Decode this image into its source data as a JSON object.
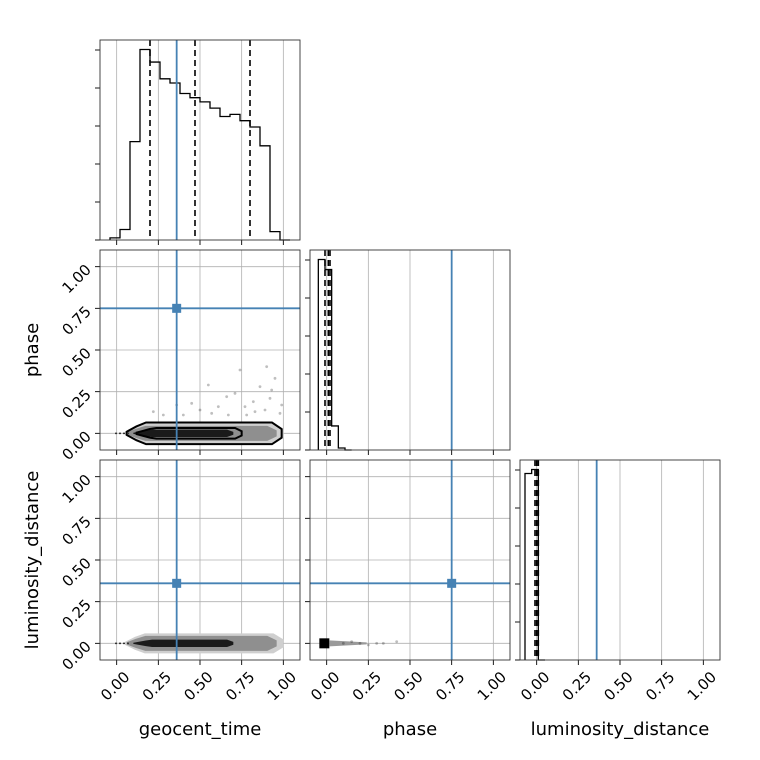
{
  "chart_data": {
    "type": "corner",
    "parameters": [
      "geocent_time",
      "phase",
      "luminosity_distance"
    ],
    "tick_labels": [
      "0.00",
      "0.25",
      "0.50",
      "0.75",
      "1.00"
    ],
    "truths": [
      0.36,
      0.75,
      0.36
    ],
    "axis_limits": {
      "geocent_time": [
        -0.1,
        1.1
      ],
      "phase": [
        -0.1,
        1.1
      ],
      "luminosity_distance": [
        -0.1,
        1.1
      ]
    },
    "grid": true,
    "histograms": [
      {
        "name": "geocent_time",
        "bin_edges": [
          -0.04,
          0.02,
          0.08,
          0.14,
          0.2,
          0.26,
          0.32,
          0.38,
          0.44,
          0.5,
          0.56,
          0.62,
          0.68,
          0.74,
          0.8,
          0.86,
          0.92,
          0.98,
          1.04
        ],
        "counts": [
          1,
          5,
          47,
          91,
          85,
          77,
          75,
          70,
          68,
          66,
          63,
          59,
          60,
          57,
          54,
          45,
          4,
          0
        ],
        "quantiles": [
          0.2,
          0.47,
          0.8
        ]
      },
      {
        "name": "phase",
        "bin_edges": [
          -0.05,
          -0.01,
          0.03,
          0.07,
          0.11,
          0.15
        ],
        "counts": [
          95,
          90,
          12,
          1,
          0
        ],
        "quantiles": [
          -0.01,
          0.01,
          0.02
        ]
      },
      {
        "name": "luminosity_distance",
        "bin_edges": [
          -0.07,
          -0.03,
          0.01,
          0.05
        ],
        "counts": [
          93,
          95,
          0
        ],
        "quantiles": [
          -0.01,
          0.0,
          0.01
        ]
      }
    ],
    "scatter_panels": [
      {
        "x": "geocent_time",
        "y": "phase",
        "points": [
          [
            0.22,
            0.13
          ],
          [
            0.36,
            0.17
          ],
          [
            0.4,
            0.11
          ],
          [
            0.5,
            0.14
          ],
          [
            0.55,
            0.29
          ],
          [
            0.61,
            0.16
          ],
          [
            0.66,
            0.22
          ],
          [
            0.71,
            0.24
          ],
          [
            0.74,
            0.38
          ],
          [
            0.78,
            0.11
          ],
          [
            0.82,
            0.19
          ],
          [
            0.86,
            0.28
          ],
          [
            0.89,
            0.14
          ],
          [
            0.92,
            0.21
          ],
          [
            0.95,
            0.33
          ],
          [
            0.98,
            0.12
          ],
          [
            0.9,
            0.4
          ],
          [
            0.67,
            0.11
          ],
          [
            0.28,
            0.11
          ],
          [
            0.45,
            0.18
          ],
          [
            0.83,
            0.13
          ],
          [
            0.99,
            0.17
          ],
          [
            0.57,
            0.12
          ],
          [
            0.77,
            0.16
          ],
          [
            0.93,
            0.26
          ]
        ],
        "density": "concentrated near phase 0 across geocent_time 0.05 to 1.0"
      },
      {
        "x": "geocent_time",
        "y": "luminosity_distance",
        "density": "concentrated near luminosity_distance 0 across geocent_time 0.05 to 1.0"
      },
      {
        "x": "phase",
        "y": "luminosity_distance",
        "points": [
          [
            0.1,
            0.0
          ],
          [
            0.15,
            0.01
          ],
          [
            0.2,
            0.0
          ],
          [
            0.25,
            -0.01
          ],
          [
            0.3,
            0.0
          ],
          [
            0.34,
            0.0
          ],
          [
            0.42,
            0.01
          ]
        ],
        "density": "concentrated near phase 0, luminosity_distance 0"
      }
    ]
  }
}
